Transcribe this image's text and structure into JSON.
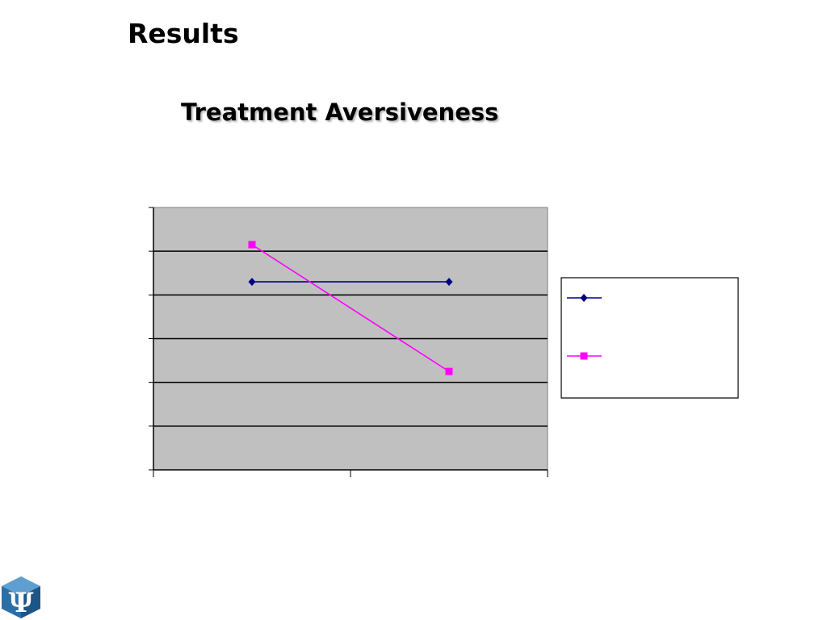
{
  "slide": {
    "title": "Results",
    "logo_icon": "psi-cube-logo-icon"
  },
  "colors": {
    "plot_background": "#c0c0c0",
    "gridline": "#000000",
    "series_1": "#000080",
    "series_2": "#ff00ff",
    "logo_blue": "#2a6fa5"
  },
  "chart_data": {
    "type": "line",
    "title": "Treatment Aversiveness",
    "categories": [
      "",
      ""
    ],
    "ylim": [
      0,
      6
    ],
    "grid": true,
    "legend_position": "right",
    "series": [
      {
        "values": [
          4.3,
          4.3
        ],
        "marker": "diamond",
        "color": "#000080"
      },
      {
        "values": [
          5.15,
          2.25
        ],
        "marker": "square",
        "color": "#ff00ff"
      }
    ]
  }
}
